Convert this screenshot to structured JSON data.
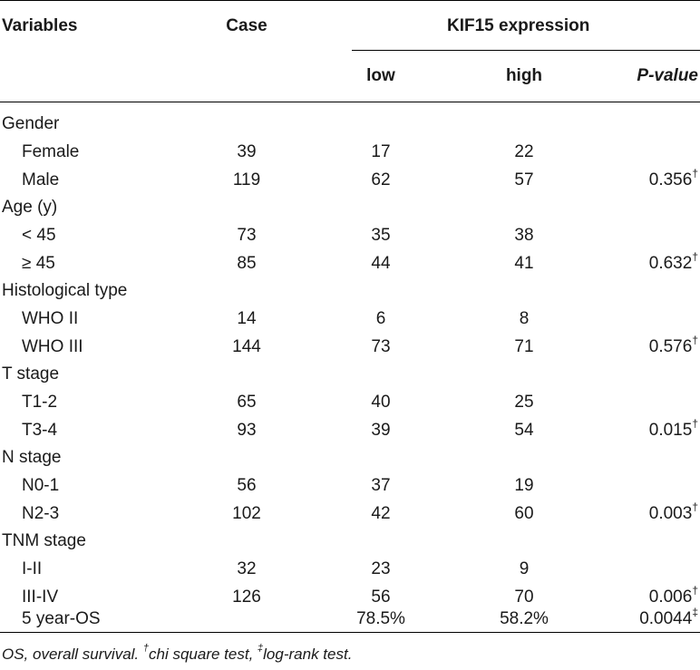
{
  "header": {
    "variables": "Variables",
    "case": "Case",
    "expression_group": "KIF15 expression",
    "low": "low",
    "high": "high",
    "p_value": "P-value"
  },
  "groups": [
    {
      "label": "Gender",
      "rows": [
        {
          "label": "Female",
          "case": "39",
          "low": "17",
          "high": "22",
          "p": "",
          "mark": ""
        },
        {
          "label": "Male",
          "case": "119",
          "low": "62",
          "high": "57",
          "p": "0.356",
          "mark": "†"
        }
      ]
    },
    {
      "label": "Age (y)",
      "rows": [
        {
          "label": "< 45",
          "case": "73",
          "low": "35",
          "high": "38",
          "p": "",
          "mark": ""
        },
        {
          "label": "≥ 45",
          "case": "85",
          "low": "44",
          "high": "41",
          "p": "0.632",
          "mark": "†"
        }
      ]
    },
    {
      "label": "Histological type",
      "rows": [
        {
          "label": "WHO II",
          "case": "14",
          "low": "6",
          "high": "8",
          "p": "",
          "mark": ""
        },
        {
          "label": "WHO III",
          "case": "144",
          "low": "73",
          "high": "71",
          "p": "0.576",
          "mark": "†"
        }
      ]
    },
    {
      "label": "T stage",
      "rows": [
        {
          "label": "T1-2",
          "case": "65",
          "low": "40",
          "high": "25",
          "p": "",
          "mark": ""
        },
        {
          "label": "T3-4",
          "case": "93",
          "low": "39",
          "high": "54",
          "p": "0.015",
          "mark": "†"
        }
      ]
    },
    {
      "label": "N stage",
      "rows": [
        {
          "label": "N0-1",
          "case": "56",
          "low": "37",
          "high": "19",
          "p": "",
          "mark": ""
        },
        {
          "label": "N2-3",
          "case": "102",
          "low": "42",
          "high": "60",
          "p": "0.003",
          "mark": "†"
        }
      ]
    },
    {
      "label": "TNM stage",
      "rows": [
        {
          "label": "I-II",
          "case": "32",
          "low": "23",
          "high": "9",
          "p": "",
          "mark": ""
        },
        {
          "label": "III-IV",
          "case": "126",
          "low": "56",
          "high": "70",
          "p": "0.006",
          "mark": "†"
        }
      ]
    }
  ],
  "os_row": {
    "label": "5 year-OS",
    "case": "",
    "low": "78.5%",
    "high": "58.2%",
    "p": "0.0044",
    "mark": "‡"
  },
  "footnote": {
    "part1": "OS, overall survival. ",
    "mark1": "†",
    "part2": "chi square test, ",
    "mark2": "‡",
    "part3": "log-rank test."
  }
}
